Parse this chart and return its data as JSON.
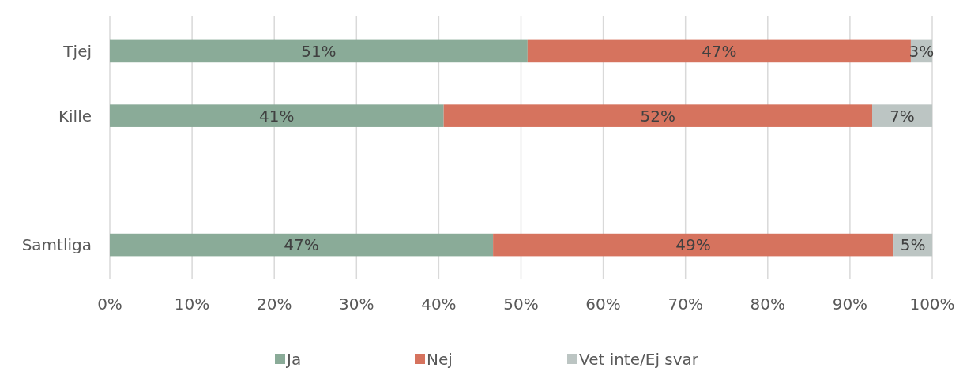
{
  "chart_data": {
    "type": "bar",
    "orientation": "horizontal",
    "stacked": true,
    "categories": [
      "Tjej",
      "Kille",
      null,
      "Samtliga"
    ],
    "series": [
      {
        "name": "Ja",
        "color": "#8aab98",
        "values": [
          50.8,
          40.6,
          null,
          46.6
        ],
        "value_labels": [
          "51%",
          "41%",
          null,
          "47%"
        ]
      },
      {
        "name": "Nej",
        "color": "#d6735e",
        "values": [
          46.6,
          52.1,
          null,
          48.7
        ],
        "value_labels": [
          "47%",
          "52%",
          null,
          "49%"
        ]
      },
      {
        "name": "Vet inte/Ej svar",
        "color": "#bcc5c3",
        "values": [
          2.6,
          7.3,
          null,
          4.7
        ],
        "value_labels": [
          "3%",
          "7%",
          null,
          "5%"
        ]
      }
    ],
    "xlim": [
      0,
      100
    ],
    "xticks": [
      {
        "value": 0,
        "label": "0%"
      },
      {
        "value": 10,
        "label": "10%"
      },
      {
        "value": 20,
        "label": "20%"
      },
      {
        "value": 30,
        "label": "30%"
      },
      {
        "value": 40,
        "label": "40%"
      },
      {
        "value": 50,
        "label": "50%"
      },
      {
        "value": 60,
        "label": "60%"
      },
      {
        "value": 70,
        "label": "70%"
      },
      {
        "value": 80,
        "label": "80%"
      },
      {
        "value": 90,
        "label": "90%"
      },
      {
        "value": 100,
        "label": "100%"
      }
    ],
    "grid": "x",
    "legend": "bottom"
  }
}
